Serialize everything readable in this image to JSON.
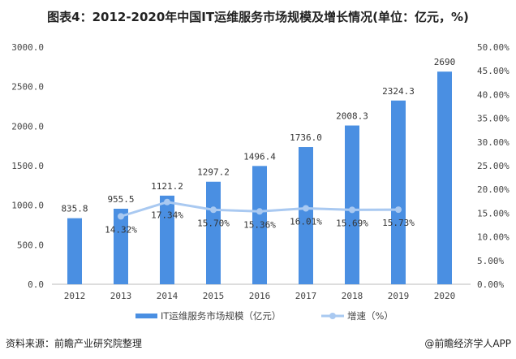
{
  "title": "图表4：2012-2020年中国IT运维服务市场规模及增长情况(单位：亿元，%)",
  "source": "资料来源：前瞻产业研究院整理",
  "credit": "@前瞻经济学人APP",
  "chart_data": {
    "type": "bar",
    "categories": [
      "2012",
      "2013",
      "2014",
      "2015",
      "2016",
      "2017",
      "2018",
      "2019",
      "2020"
    ],
    "series": [
      {
        "name": "IT运维服务市场规模（亿元）",
        "type": "bar",
        "axis": "left",
        "color": "#4a8fe2",
        "values": [
          835.8,
          955.5,
          1121.2,
          1297.2,
          1496.4,
          1736.0,
          2008.3,
          2324.3,
          2690
        ],
        "labels": [
          "835.8",
          "955.5",
          "1121.2",
          "1297.2",
          "1496.4",
          "1736.0",
          "2008.3",
          "2324.3",
          "2690"
        ]
      },
      {
        "name": "增速（%）",
        "type": "line",
        "axis": "right",
        "color": "#a9c9f1",
        "values": [
          null,
          14.32,
          17.34,
          15.7,
          15.36,
          16.01,
          15.69,
          15.73,
          null
        ],
        "labels": [
          "",
          "14.32%",
          "17.34%",
          "15.70%",
          "15.36%",
          "16.01%",
          "15.69%",
          "15.73%",
          ""
        ]
      }
    ],
    "ylim_left": [
      0,
      3000
    ],
    "yticks_left": [
      "0.0",
      "500.0",
      "1000.0",
      "1500.0",
      "2000.0",
      "2500.0",
      "3000.0"
    ],
    "ylim_right": [
      0,
      50
    ],
    "yticks_right": [
      "0.00%",
      "5.00%",
      "10.00%",
      "15.00%",
      "20.00%",
      "25.00%",
      "30.00%",
      "35.00%",
      "40.00%",
      "45.00%",
      "50.00%"
    ],
    "grid": false,
    "legend_placement": "bottom"
  }
}
